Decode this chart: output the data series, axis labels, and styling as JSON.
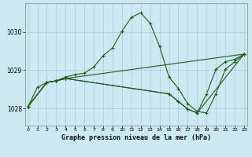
{
  "xlabel": "Graphe pression niveau de la mer (hPa)",
  "bg_color": "#cce8f0",
  "grid_color": "#aaccd8",
  "line_color": "#1e5c1e",
  "xticks": [
    0,
    1,
    2,
    3,
    4,
    5,
    6,
    7,
    8,
    9,
    10,
    11,
    12,
    13,
    14,
    15,
    16,
    17,
    18,
    19,
    20,
    21,
    22,
    23
  ],
  "yticks": [
    1028,
    1029,
    1030
  ],
  "xlim": [
    -0.3,
    23.3
  ],
  "ylim": [
    1027.55,
    1030.75
  ],
  "series0_x": [
    0,
    1,
    2,
    3,
    4,
    5,
    6,
    7,
    8,
    9,
    10,
    11,
    12,
    13,
    14,
    15,
    16,
    17,
    18,
    19,
    20,
    21,
    22,
    23
  ],
  "series0_y": [
    1028.05,
    1028.55,
    1028.68,
    1028.72,
    1028.82,
    1028.88,
    1028.92,
    1029.08,
    1029.38,
    1029.58,
    1030.02,
    1030.38,
    1030.5,
    1030.22,
    1029.62,
    1028.82,
    1028.52,
    1028.12,
    1027.92,
    1027.88,
    1028.38,
    1029.02,
    1029.22,
    1029.42
  ],
  "series1_x": [
    0,
    2,
    3,
    4,
    23
  ],
  "series1_y": [
    1028.05,
    1028.68,
    1028.72,
    1028.78,
    1029.42
  ],
  "series2_x": [
    0,
    2,
    3,
    4,
    15,
    16,
    17,
    18,
    23
  ],
  "series2_y": [
    1028.05,
    1028.68,
    1028.72,
    1028.78,
    1028.38,
    1028.18,
    1027.98,
    1027.88,
    1029.42
  ],
  "series3_x": [
    0,
    2,
    3,
    4,
    15,
    16,
    17,
    18,
    19,
    20,
    21,
    22,
    23
  ],
  "series3_y": [
    1028.05,
    1028.68,
    1028.72,
    1028.78,
    1028.38,
    1028.18,
    1027.98,
    1027.88,
    1028.38,
    1029.02,
    1029.22,
    1029.28,
    1029.42
  ]
}
